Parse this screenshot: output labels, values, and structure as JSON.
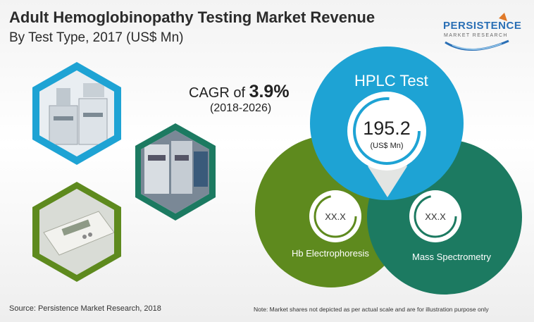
{
  "title": "Adult Hemoglobinopathy Testing Market Revenue",
  "subtitle": "By Test Type, 2017 (US$ Mn)",
  "logo": {
    "name": "PERSISTENCE",
    "tagline": "MARKET RESEARCH"
  },
  "cagr": {
    "prefix": "CAGR of ",
    "value": "3.9%",
    "period": "(2018-2026)"
  },
  "segments": [
    {
      "name": "HPLC Test",
      "value": "195.2",
      "unit": "(US$ Mn)",
      "color": "#1ea3d4"
    },
    {
      "name": "Hb Electrophoresis",
      "value": "XX.X",
      "color": "#5e8a1e"
    },
    {
      "name": "Mass Spectrometry",
      "value": "XX.X",
      "color": "#1c7a61"
    }
  ],
  "photos": [
    {
      "icon": "hplc-instrument-photo",
      "frame_color": "#1ea3d4"
    },
    {
      "icon": "lab-equipment-photo",
      "frame_color": "#1c7a61"
    },
    {
      "icon": "electrophoresis-device-photo",
      "frame_color": "#5e8a1e"
    }
  ],
  "source": "Source: Persistence Market Research, 2018",
  "note": "Note: Market shares not depicted as per actual scale and are for illustration purpose only"
}
